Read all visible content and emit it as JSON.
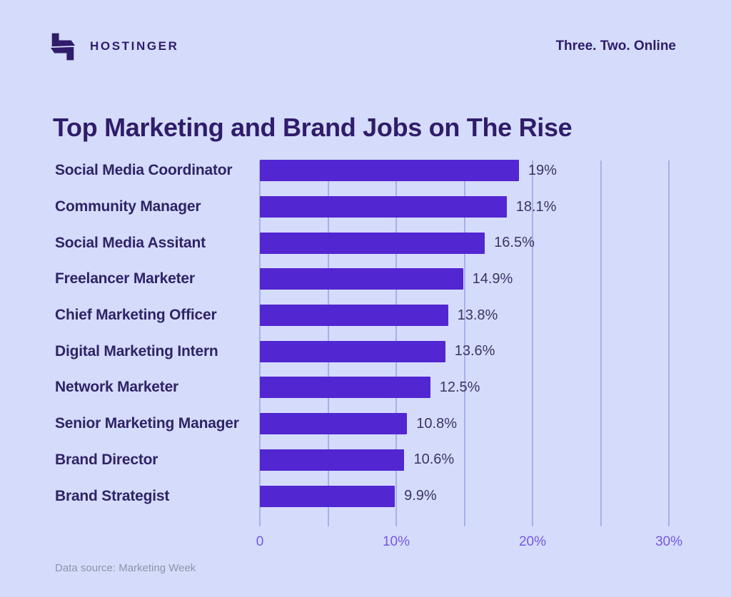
{
  "header": {
    "brand": "HOSTINGER",
    "tagline": "Three. Two. Online"
  },
  "title": "Top Marketing and Brand Jobs on The Rise",
  "chart_data": {
    "type": "bar",
    "orientation": "horizontal",
    "title": "Top Marketing and Brand Jobs on The Rise",
    "categories": [
      "Social Media Coordinator",
      "Community Manager",
      "Social Media Assitant",
      "Freelancer Marketer",
      "Chief Marketing Officer",
      "Digital Marketing Intern",
      "Network Marketer",
      "Senior Marketing Manager",
      "Brand Director",
      "Brand Strategist"
    ],
    "values": [
      19,
      18.1,
      16.5,
      14.9,
      13.8,
      13.6,
      12.5,
      10.8,
      10.6,
      9.9
    ],
    "value_labels": [
      "19%",
      "18.1%",
      "16.5%",
      "14.9%",
      "13.8%",
      "13.6%",
      "12.5%",
      "10.8%",
      "10.6%",
      "9.9%"
    ],
    "xlabel": "",
    "ylabel": "",
    "xlim": [
      0,
      30
    ],
    "x_ticks": [
      {
        "label": "0",
        "pct": 0
      },
      {
        "label": "10%",
        "pct": 10
      },
      {
        "label": "20%",
        "pct": 20
      },
      {
        "label": "30%",
        "pct": 30
      }
    ],
    "gridline_step_pct": 5,
    "grid": "vertical",
    "legend": "none",
    "bar_color": "#5226d1"
  },
  "footer": {
    "source": "Data source: Marketing Week"
  },
  "colors": {
    "background": "#d5dcfb",
    "bar": "#5226d1",
    "dark_text": "#2f1c6a",
    "category_text": "#2f2366",
    "value_text": "#3b3364",
    "axis_text": "#7557e8",
    "gridline": "#a9aeec",
    "source_text": "#8e94a8"
  }
}
